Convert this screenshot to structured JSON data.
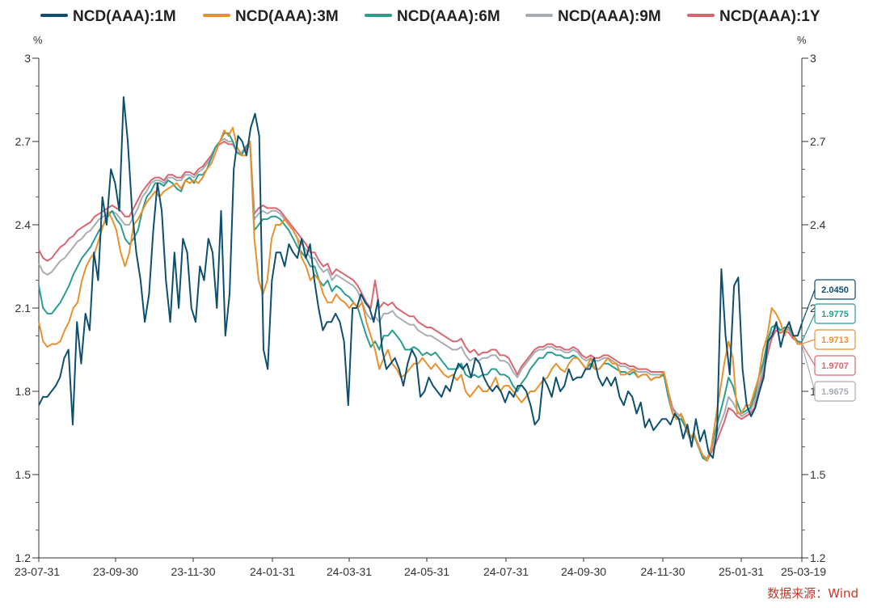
{
  "chart_data": {
    "type": "line",
    "x_tick_labels": [
      "23-07-31",
      "23-09-30",
      "23-11-30",
      "24-01-31",
      "24-03-31",
      "24-05-31",
      "24-07-31",
      "24-09-30",
      "24-11-30",
      "25-01-31",
      "25-03-19"
    ],
    "y_left_unit": "%",
    "y_right_unit": "%",
    "ylim": [
      1.2,
      3.0
    ],
    "y_ticks": [
      "3",
      "2.7",
      "2.4",
      "2.1",
      "1.8",
      "1.5",
      "1.2"
    ],
    "legend_position": "top",
    "source_note": "数据来源：Wind",
    "series": [
      {
        "name": "NCD(AAA):1M",
        "color": "#0d4f6e",
        "end_label": "2.0450",
        "values": [
          1.75,
          1.78,
          1.78,
          1.8,
          1.82,
          1.85,
          1.92,
          1.95,
          1.68,
          2.05,
          1.9,
          2.08,
          2.02,
          2.3,
          2.2,
          2.5,
          2.4,
          2.6,
          2.55,
          2.45,
          2.86,
          2.7,
          2.45,
          2.3,
          2.2,
          2.05,
          2.15,
          2.38,
          2.55,
          2.45,
          2.2,
          2.05,
          2.3,
          2.1,
          2.35,
          2.3,
          2.1,
          2.05,
          2.25,
          2.2,
          2.35,
          2.3,
          2.1,
          2.45,
          2.0,
          2.15,
          2.6,
          2.72,
          2.7,
          2.65,
          2.75,
          2.8,
          2.72,
          1.95,
          1.88,
          2.2,
          2.3,
          2.3,
          2.25,
          2.33,
          2.3,
          2.28,
          2.35,
          2.28,
          2.33,
          2.2,
          2.1,
          2.02,
          2.05,
          2.05,
          2.08,
          2.05,
          1.98,
          1.75,
          2.1,
          2.1,
          2.15,
          2.12,
          2.1,
          2.05,
          2.13,
          1.95,
          1.88,
          1.9,
          1.92,
          1.88,
          1.82,
          1.9,
          1.95,
          1.92,
          1.78,
          1.8,
          1.85,
          1.82,
          1.8,
          1.78,
          1.82,
          1.8,
          1.86,
          1.9,
          1.88,
          1.9,
          1.85,
          1.92,
          1.9,
          1.85,
          1.82,
          1.8,
          1.82,
          1.8,
          1.76,
          1.8,
          1.78,
          1.82,
          1.82,
          1.8,
          1.75,
          1.68,
          1.7,
          1.85,
          1.82,
          1.78,
          1.85,
          1.8,
          1.82,
          1.88,
          1.84,
          1.85,
          1.85,
          1.88,
          1.88,
          1.92,
          1.85,
          1.82,
          1.85,
          1.82,
          1.85,
          1.78,
          1.75,
          1.8,
          1.78,
          1.72,
          1.76,
          1.67,
          1.7,
          1.66,
          1.68,
          1.7,
          1.7,
          1.68,
          1.72,
          1.7,
          1.63,
          1.68,
          1.6,
          1.7,
          1.62,
          1.66,
          1.58,
          1.56,
          1.66,
          2.24,
          2.0,
          1.86,
          2.18,
          2.21,
          1.88,
          1.75,
          1.71,
          1.74,
          1.8,
          1.85,
          1.98,
          2.0,
          2.05,
          1.96,
          2.02,
          2.05,
          2.0,
          2.0,
          2.045
        ]
      },
      {
        "name": "NCD(AAA):3M",
        "color": "#e8912d",
        "end_label": "1.9713",
        "values": [
          2.05,
          1.98,
          1.96,
          1.97,
          1.97,
          1.98,
          2.02,
          2.05,
          2.1,
          2.12,
          2.2,
          2.25,
          2.28,
          2.3,
          2.35,
          2.4,
          2.45,
          2.42,
          2.38,
          2.3,
          2.25,
          2.3,
          2.4,
          2.42,
          2.45,
          2.48,
          2.5,
          2.52,
          2.5,
          2.52,
          2.53,
          2.54,
          2.55,
          2.53,
          2.56,
          2.55,
          2.56,
          2.55,
          2.57,
          2.6,
          2.62,
          2.66,
          2.7,
          2.74,
          2.72,
          2.75,
          2.68,
          2.65,
          2.65,
          2.7,
          2.35,
          2.2,
          2.15,
          2.2,
          2.35,
          2.4,
          2.4,
          2.42,
          2.4,
          2.38,
          2.35,
          2.28,
          2.25,
          2.2,
          2.22,
          2.2,
          2.15,
          2.12,
          2.12,
          2.15,
          2.13,
          2.12,
          2.1,
          2.12,
          2.1,
          2.12,
          2.05,
          2.0,
          1.95,
          1.88,
          1.92,
          1.95,
          1.9,
          1.88,
          1.85,
          1.86,
          1.88,
          1.9,
          1.9,
          1.92,
          1.9,
          1.88,
          1.9,
          1.88,
          1.86,
          1.85,
          1.86,
          1.84,
          1.86,
          1.8,
          1.78,
          1.8,
          1.82,
          1.8,
          1.8,
          1.82,
          1.85,
          1.8,
          1.82,
          1.82,
          1.8,
          1.78,
          1.76,
          1.78,
          1.8,
          1.8,
          1.82,
          1.84,
          1.85,
          1.88,
          1.9,
          1.88,
          1.87,
          1.9,
          1.92,
          1.92,
          1.9,
          1.88,
          1.92,
          1.88,
          1.88,
          1.9,
          1.92,
          1.9,
          1.9,
          1.86,
          1.86,
          1.87,
          1.88,
          1.85,
          1.86,
          1.86,
          1.84,
          1.85,
          1.85,
          1.87,
          1.8,
          1.72,
          1.7,
          1.72,
          1.68,
          1.63,
          1.65,
          1.6,
          1.57,
          1.55,
          1.6,
          1.7,
          1.8,
          1.9,
          1.98,
          1.92,
          1.72,
          1.72,
          1.75,
          1.75,
          1.8,
          1.85,
          1.95,
          2.0,
          2.1,
          2.08,
          2.05,
          2.0,
          2.05,
          2.0,
          1.97,
          1.9713
        ]
      },
      {
        "name": "NCD(AAA):6M",
        "color": "#2a9d8f",
        "end_label": "1.9775",
        "values": [
          2.18,
          2.1,
          2.08,
          2.08,
          2.1,
          2.12,
          2.15,
          2.18,
          2.22,
          2.25,
          2.28,
          2.3,
          2.32,
          2.35,
          2.38,
          2.4,
          2.43,
          2.45,
          2.42,
          2.4,
          2.35,
          2.33,
          2.35,
          2.38,
          2.45,
          2.5,
          2.52,
          2.55,
          2.55,
          2.54,
          2.56,
          2.55,
          2.53,
          2.52,
          2.56,
          2.57,
          2.55,
          2.58,
          2.58,
          2.6,
          2.64,
          2.68,
          2.7,
          2.73,
          2.73,
          2.7,
          2.66,
          2.65,
          2.68,
          2.7,
          2.38,
          2.4,
          2.42,
          2.42,
          2.43,
          2.43,
          2.42,
          2.4,
          2.38,
          2.35,
          2.32,
          2.3,
          2.28,
          2.25,
          2.25,
          2.2,
          2.18,
          2.2,
          2.16,
          2.18,
          2.17,
          2.15,
          2.14,
          2.12,
          2.1,
          2.05,
          2.0,
          1.96,
          1.98,
          1.95,
          2.0,
          2.0,
          2.02,
          2.0,
          1.98,
          1.95,
          1.95,
          1.96,
          1.95,
          1.93,
          1.94,
          1.93,
          1.94,
          1.92,
          1.9,
          1.88,
          1.88,
          1.88,
          1.9,
          1.86,
          1.85,
          1.86,
          1.85,
          1.86,
          1.86,
          1.88,
          1.88,
          1.86,
          1.86,
          1.85,
          1.82,
          1.8,
          1.83,
          1.85,
          1.88,
          1.9,
          1.92,
          1.92,
          1.94,
          1.94,
          1.93,
          1.93,
          1.92,
          1.92,
          1.93,
          1.92,
          1.9,
          1.88,
          1.9,
          1.88,
          1.88,
          1.9,
          1.9,
          1.89,
          1.88,
          1.87,
          1.87,
          1.86,
          1.87,
          1.85,
          1.86,
          1.86,
          1.84,
          1.85,
          1.85,
          1.86,
          1.78,
          1.72,
          1.7,
          1.7,
          1.67,
          1.63,
          1.64,
          1.6,
          1.56,
          1.55,
          1.6,
          1.66,
          1.72,
          1.78,
          1.85,
          1.82,
          1.76,
          1.72,
          1.73,
          1.74,
          1.78,
          1.85,
          1.9,
          1.98,
          2.03,
          2.04,
          2.02,
          2.03,
          2.03,
          2.0,
          1.98,
          1.9775
        ]
      },
      {
        "name": "NCD(AAA):9M",
        "color": "#a8adb5",
        "end_label": "1.9675",
        "values": [
          2.26,
          2.23,
          2.22,
          2.23,
          2.25,
          2.27,
          2.28,
          2.3,
          2.32,
          2.34,
          2.35,
          2.37,
          2.38,
          2.4,
          2.42,
          2.43,
          2.44,
          2.45,
          2.44,
          2.42,
          2.4,
          2.4,
          2.43,
          2.46,
          2.5,
          2.52,
          2.55,
          2.56,
          2.56,
          2.55,
          2.57,
          2.57,
          2.56,
          2.56,
          2.58,
          2.58,
          2.57,
          2.59,
          2.6,
          2.62,
          2.64,
          2.68,
          2.7,
          2.71,
          2.7,
          2.7,
          2.66,
          2.66,
          2.68,
          2.7,
          2.42,
          2.44,
          2.45,
          2.44,
          2.45,
          2.45,
          2.44,
          2.42,
          2.4,
          2.38,
          2.35,
          2.33,
          2.31,
          2.28,
          2.28,
          2.25,
          2.23,
          2.24,
          2.2,
          2.22,
          2.21,
          2.2,
          2.19,
          2.18,
          2.16,
          2.12,
          2.08,
          2.06,
          2.07,
          2.05,
          2.08,
          2.08,
          2.09,
          2.07,
          2.06,
          2.05,
          2.04,
          2.04,
          2.02,
          2.01,
          2.0,
          2.0,
          1.99,
          1.98,
          1.97,
          1.96,
          1.95,
          1.95,
          1.96,
          1.93,
          1.91,
          1.92,
          1.91,
          1.92,
          1.92,
          1.93,
          1.93,
          1.91,
          1.91,
          1.9,
          1.87,
          1.85,
          1.88,
          1.9,
          1.92,
          1.94,
          1.95,
          1.95,
          1.96,
          1.96,
          1.95,
          1.95,
          1.94,
          1.94,
          1.95,
          1.94,
          1.92,
          1.91,
          1.92,
          1.91,
          1.91,
          1.92,
          1.92,
          1.91,
          1.9,
          1.89,
          1.89,
          1.88,
          1.88,
          1.87,
          1.87,
          1.87,
          1.86,
          1.86,
          1.86,
          1.86,
          1.79,
          1.73,
          1.72,
          1.71,
          1.68,
          1.64,
          1.64,
          1.61,
          1.57,
          1.56,
          1.59,
          1.63,
          1.68,
          1.72,
          1.78,
          1.76,
          1.73,
          1.71,
          1.72,
          1.73,
          1.76,
          1.82,
          1.88,
          1.95,
          2.01,
          2.03,
          2.02,
          2.03,
          2.02,
          2.0,
          1.98,
          1.9675
        ]
      },
      {
        "name": "NCD(AAA):1Y",
        "color": "#d9666f",
        "end_label": "1.9707",
        "values": [
          2.31,
          2.28,
          2.27,
          2.28,
          2.3,
          2.32,
          2.33,
          2.35,
          2.36,
          2.38,
          2.39,
          2.4,
          2.41,
          2.43,
          2.44,
          2.45,
          2.46,
          2.47,
          2.46,
          2.45,
          2.43,
          2.43,
          2.46,
          2.49,
          2.52,
          2.54,
          2.56,
          2.57,
          2.57,
          2.56,
          2.58,
          2.58,
          2.57,
          2.57,
          2.59,
          2.59,
          2.58,
          2.6,
          2.61,
          2.63,
          2.65,
          2.68,
          2.69,
          2.7,
          2.69,
          2.69,
          2.66,
          2.66,
          2.67,
          2.69,
          2.44,
          2.46,
          2.47,
          2.46,
          2.46,
          2.46,
          2.45,
          2.43,
          2.41,
          2.39,
          2.37,
          2.35,
          2.33,
          2.3,
          2.3,
          2.27,
          2.25,
          2.26,
          2.22,
          2.24,
          2.23,
          2.22,
          2.21,
          2.2,
          2.18,
          2.15,
          2.12,
          2.1,
          2.2,
          2.1,
          2.12,
          2.11,
          2.12,
          2.1,
          2.09,
          2.08,
          2.07,
          2.07,
          2.05,
          2.04,
          2.03,
          2.03,
          2.02,
          2.01,
          2.0,
          1.99,
          1.98,
          1.98,
          1.99,
          1.96,
          1.94,
          1.95,
          1.93,
          1.94,
          1.94,
          1.95,
          1.95,
          1.93,
          1.93,
          1.92,
          1.89,
          1.86,
          1.89,
          1.91,
          1.93,
          1.95,
          1.96,
          1.96,
          1.97,
          1.97,
          1.96,
          1.96,
          1.95,
          1.95,
          1.96,
          1.95,
          1.93,
          1.92,
          1.93,
          1.92,
          1.92,
          1.93,
          1.93,
          1.92,
          1.91,
          1.9,
          1.9,
          1.89,
          1.89,
          1.88,
          1.88,
          1.88,
          1.87,
          1.87,
          1.87,
          1.87,
          1.8,
          1.74,
          1.72,
          1.71,
          1.68,
          1.64,
          1.64,
          1.6,
          1.57,
          1.55,
          1.58,
          1.61,
          1.65,
          1.69,
          1.74,
          1.73,
          1.71,
          1.7,
          1.71,
          1.72,
          1.74,
          1.8,
          1.86,
          1.93,
          1.99,
          2.02,
          2.01,
          2.02,
          2.01,
          1.99,
          1.98,
          1.9707
        ]
      }
    ]
  }
}
